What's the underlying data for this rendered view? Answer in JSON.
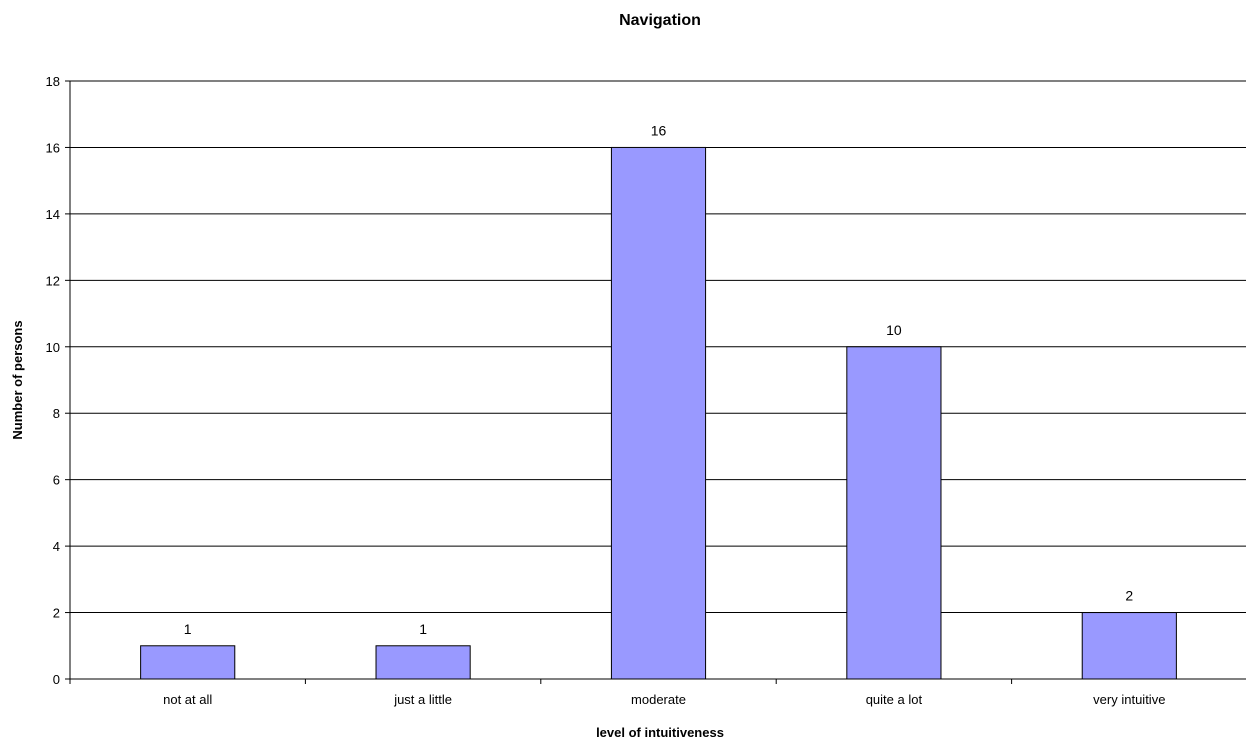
{
  "chart_data": {
    "type": "bar",
    "title": "Navigation",
    "xlabel": "level of intuitiveness",
    "ylabel": "Number of persons",
    "categories": [
      "not at all",
      "just a little",
      "moderate",
      "quite a lot",
      "very intuitive"
    ],
    "series": [
      {
        "values": [
          1,
          1,
          16,
          10,
          2
        ],
        "color": "#9999ff"
      }
    ],
    "ylim": [
      0,
      18
    ],
    "yticks": [
      "0",
      "2",
      "4",
      "6",
      "8",
      "10",
      "12",
      "14",
      "16",
      "18"
    ],
    "data_labels": [
      "1",
      "1",
      "16",
      "10",
      "2"
    ],
    "grid": true,
    "legend": "none"
  }
}
